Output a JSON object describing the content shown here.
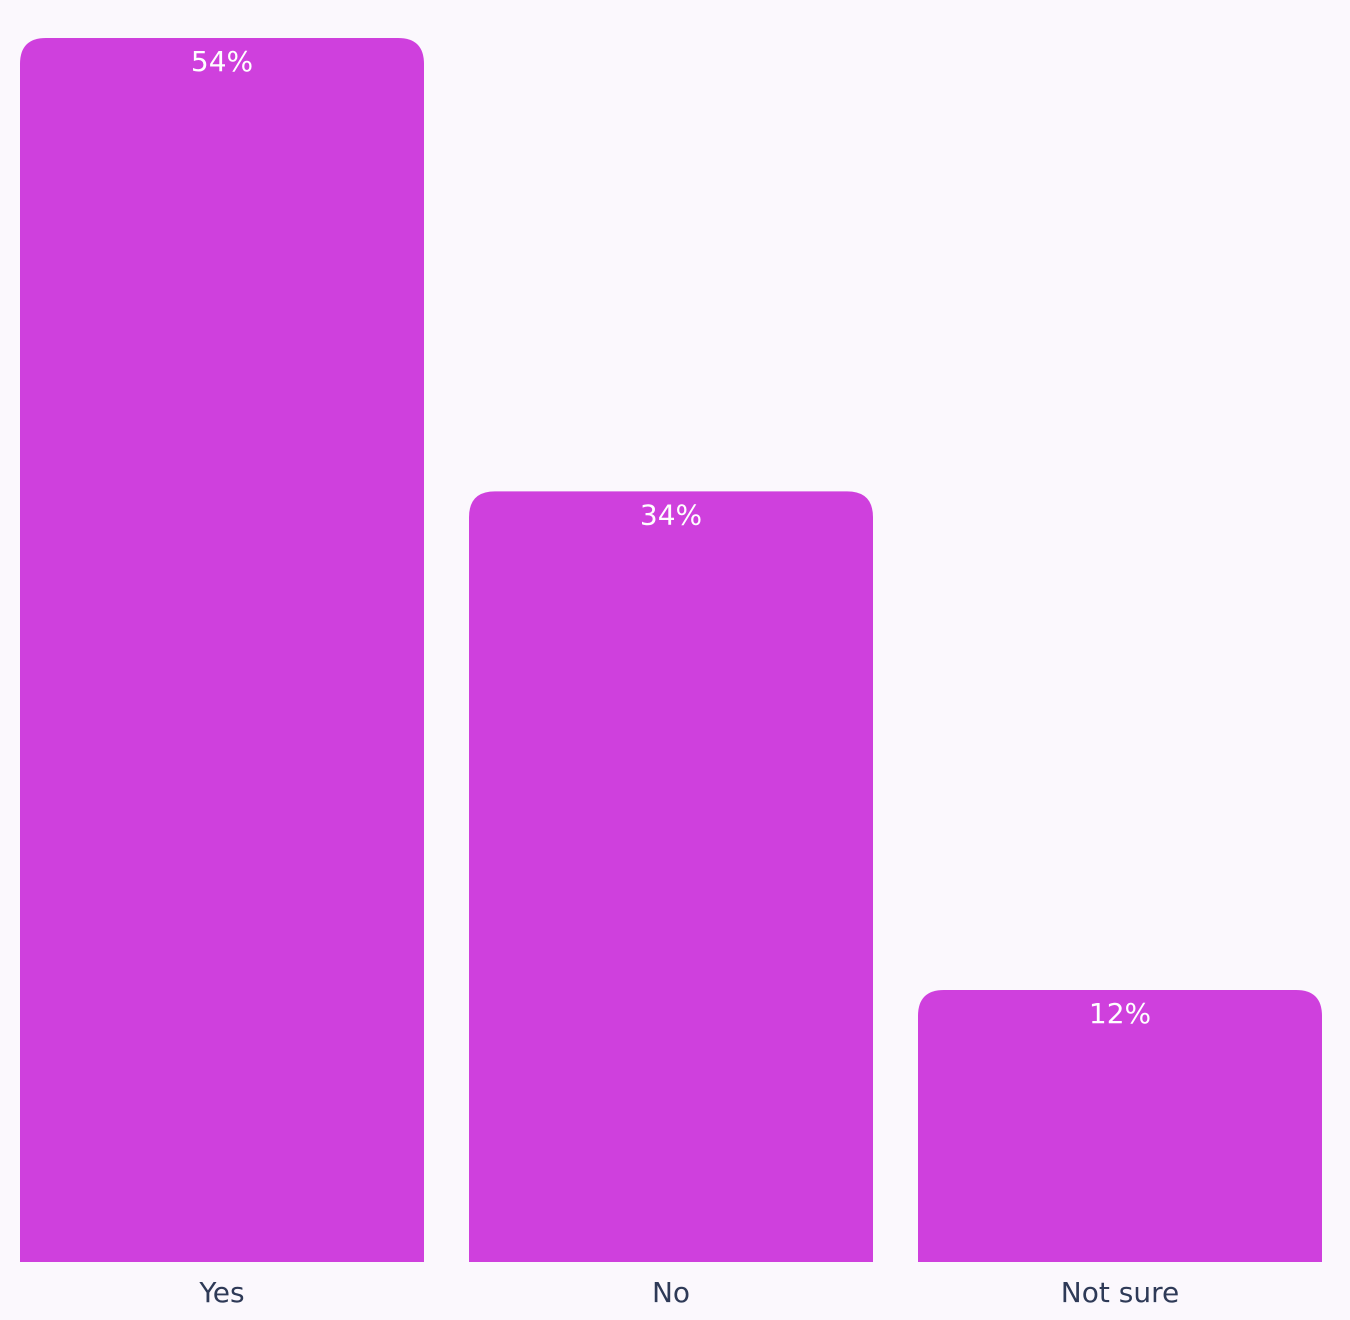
{
  "chart_data": {
    "type": "bar",
    "categories": [
      "Yes",
      "No",
      "Not sure"
    ],
    "values": [
      54,
      34,
      12
    ],
    "value_labels": [
      "54%",
      "34%",
      "12%"
    ],
    "title": "",
    "xlabel": "",
    "ylabel": "",
    "ylim": [
      0,
      54
    ],
    "grid": false,
    "legend": "none",
    "colors": {
      "bar": "#cf40dd",
      "background": "#fbf8fd",
      "bar_label": "#ffffff",
      "category_label": "#2e3a57"
    }
  }
}
